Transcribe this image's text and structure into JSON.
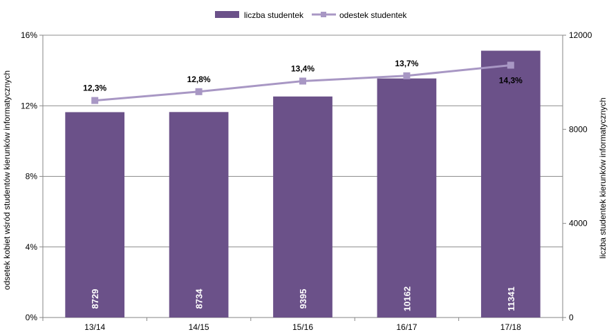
{
  "chart_data": {
    "type": "bar",
    "categories": [
      "13/14",
      "14/15",
      "15/16",
      "16/17",
      "17/18"
    ],
    "series": [
      {
        "name": "liczba studentek",
        "type": "bar",
        "axis": "right",
        "values": [
          8729,
          8734,
          9395,
          10162,
          11341
        ],
        "labels": [
          "8729",
          "8734",
          "9395",
          "10162",
          "11341"
        ],
        "color": "#6B5189"
      },
      {
        "name": "odestek studentek",
        "type": "line",
        "axis": "left",
        "values": [
          12.3,
          12.8,
          13.4,
          13.7,
          14.3
        ],
        "labels": [
          "12,3%",
          "12,8%",
          "13,4%",
          "13,7%",
          "14,3%"
        ],
        "color": "#A897C4"
      }
    ],
    "y_left": {
      "label": "odsetek kobiet wśród studentów kierunków informatycznych",
      "range": [
        0,
        16
      ],
      "ticks": [
        0,
        4,
        8,
        12,
        16
      ],
      "tick_labels": [
        "0%",
        "4%",
        "8%",
        "12%",
        "16%"
      ]
    },
    "y_right": {
      "label": "liczba studentek kierunków informatycznych",
      "range": [
        0,
        12000
      ],
      "ticks": [
        0,
        4000,
        8000,
        12000
      ],
      "tick_labels": [
        "0",
        "4000",
        "8000",
        "12000"
      ]
    },
    "grid": true,
    "legend_position": "top-center"
  }
}
